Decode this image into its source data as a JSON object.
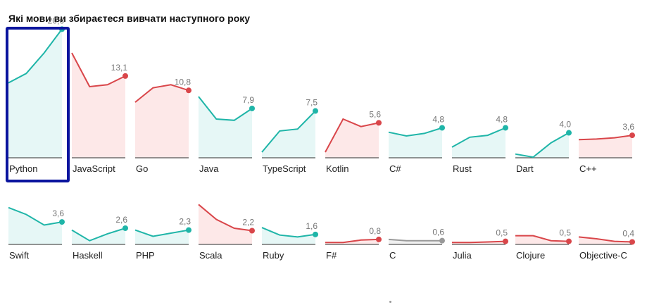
{
  "title": "Які мови ви збираєтеся вивчати наступного року",
  "colors": {
    "up": "#1fb5a8",
    "up_fill": "#e6f7f6",
    "down": "#d9464a",
    "down_fill": "#fde8e8",
    "neutral": "#999999",
    "neutral_fill": "#f0f0f0",
    "highlight_border": "#0a149e"
  },
  "chart_data": {
    "type": "line",
    "layout": "small-multiples",
    "ylim": [
      0,
      22
    ],
    "series": [
      {
        "name": "Python",
        "trend": "up",
        "values": [
          12.0,
          13.5,
          16.8,
          20.6
        ],
        "end_label": "20,6"
      },
      {
        "name": "JavaScript",
        "trend": "down",
        "values": [
          16.8,
          11.4,
          11.7,
          13.1
        ],
        "end_label": "13,1"
      },
      {
        "name": "Go",
        "trend": "down",
        "values": [
          8.9,
          11.2,
          11.7,
          10.8
        ],
        "end_label": "10,8"
      },
      {
        "name": "Java",
        "trend": "up",
        "values": [
          9.8,
          6.2,
          6.0,
          7.9
        ],
        "end_label": "7,9"
      },
      {
        "name": "TypeScript",
        "trend": "up",
        "values": [
          0.9,
          4.3,
          4.6,
          7.5
        ],
        "end_label": "7,5"
      },
      {
        "name": "Kotlin",
        "trend": "down",
        "values": [
          0.9,
          6.2,
          5.0,
          5.6
        ],
        "end_label": "5,6"
      },
      {
        "name": "C#",
        "trend": "up",
        "values": [
          4.1,
          3.5,
          3.9,
          4.8
        ],
        "end_label": "4,8"
      },
      {
        "name": "Rust",
        "trend": "up",
        "values": [
          1.7,
          3.3,
          3.6,
          4.8
        ],
        "end_label": "4,8"
      },
      {
        "name": "Dart",
        "trend": "up",
        "values": [
          0.6,
          0.1,
          2.4,
          4.0
        ],
        "end_label": "4,0"
      },
      {
        "name": "C++",
        "trend": "down",
        "values": [
          2.9,
          3.0,
          3.2,
          3.6
        ],
        "end_label": "3,6"
      },
      {
        "name": "Swift",
        "trend": "up",
        "values": [
          5.9,
          4.8,
          3.1,
          3.6
        ],
        "end_label": "3,6"
      },
      {
        "name": "Haskell",
        "trend": "up",
        "values": [
          2.3,
          0.6,
          1.7,
          2.6
        ],
        "end_label": "2,6"
      },
      {
        "name": "PHP",
        "trend": "up",
        "values": [
          2.3,
          1.3,
          1.8,
          2.3
        ],
        "end_label": "2,3"
      },
      {
        "name": "Scala",
        "trend": "down",
        "values": [
          6.4,
          4.0,
          2.6,
          2.2
        ],
        "end_label": "2,2"
      },
      {
        "name": "Ruby",
        "trend": "up",
        "values": [
          2.7,
          1.5,
          1.2,
          1.6
        ],
        "end_label": "1,6"
      },
      {
        "name": "F#",
        "trend": "down",
        "values": [
          0.3,
          0.3,
          0.7,
          0.8
        ],
        "end_label": "0,8"
      },
      {
        "name": "C",
        "trend": "neutral",
        "values": [
          0.8,
          0.6,
          0.6,
          0.6
        ],
        "end_label": "0,6"
      },
      {
        "name": "Julia",
        "trend": "down",
        "values": [
          0.3,
          0.3,
          0.4,
          0.5
        ],
        "end_label": "0,5"
      },
      {
        "name": "Clojure",
        "trend": "down",
        "values": [
          1.4,
          1.4,
          0.6,
          0.5
        ],
        "end_label": "0,5"
      },
      {
        "name": "Objective-C",
        "trend": "down",
        "values": [
          1.2,
          0.9,
          0.5,
          0.4
        ],
        "end_label": "0,4"
      }
    ]
  }
}
